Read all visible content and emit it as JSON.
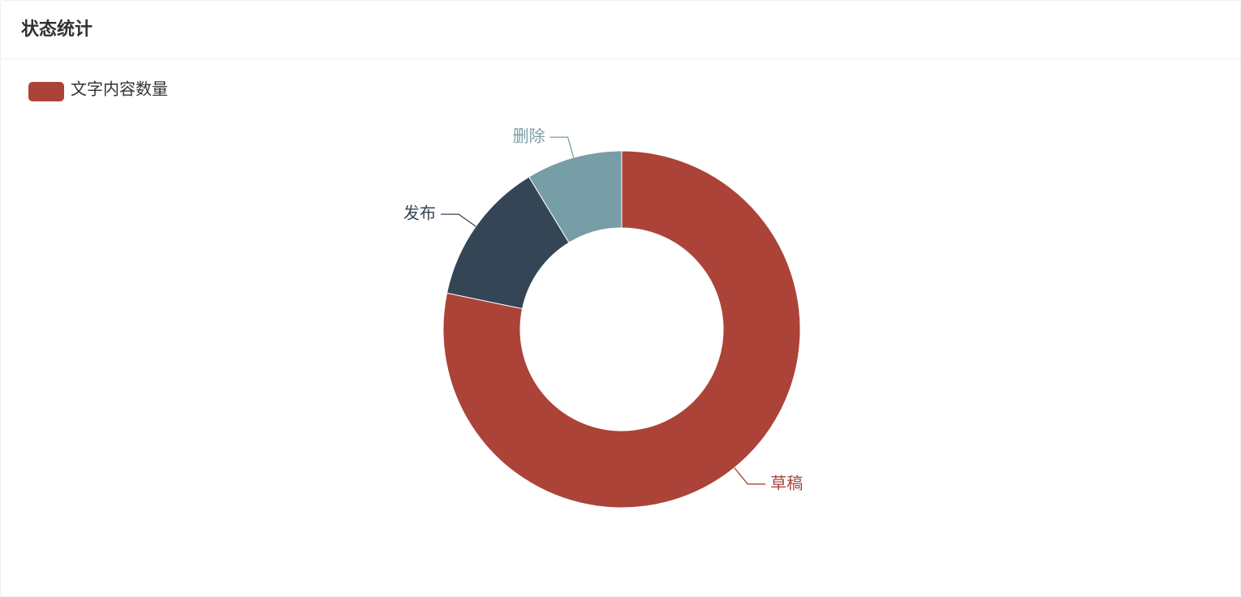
{
  "header": {
    "title": "状态统计"
  },
  "chart_data": {
    "type": "pie",
    "donut": true,
    "series_name": "文字内容数量",
    "categories": [
      "草稿",
      "发布",
      "删除"
    ],
    "values": [
      18,
      3,
      2
    ],
    "colors": [
      "#ab4339",
      "#344556",
      "#779ea6"
    ]
  }
}
